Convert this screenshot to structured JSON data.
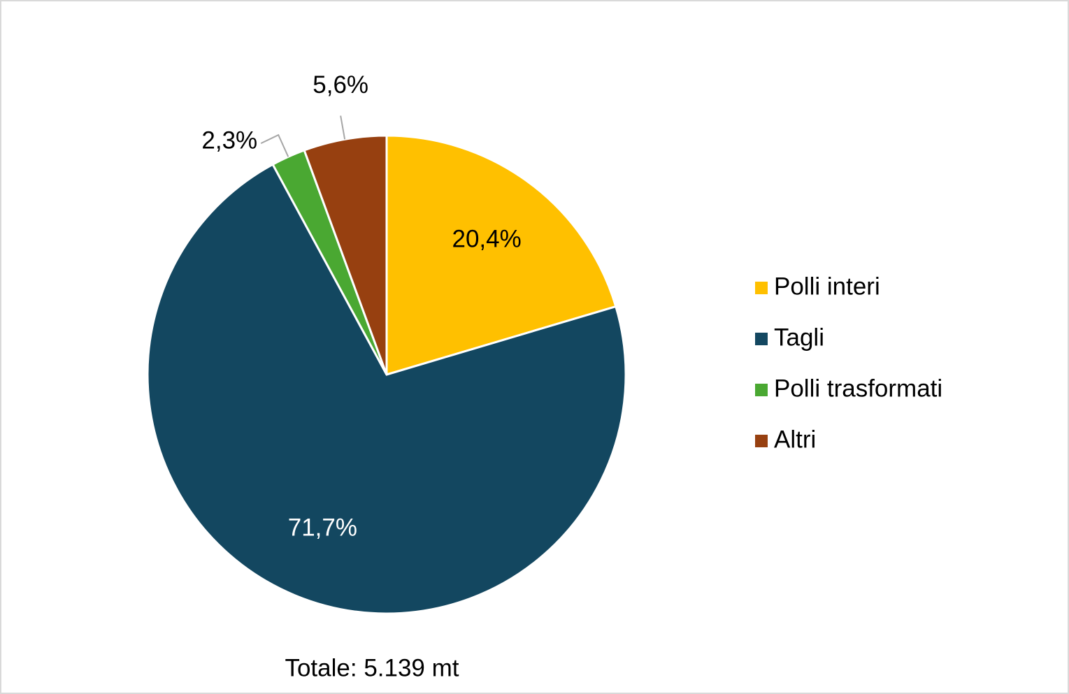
{
  "chart_data": {
    "type": "pie",
    "categories": [
      "Polli interi",
      "Tagli",
      "Polli trasformati",
      "Altri"
    ],
    "values": [
      20.4,
      71.7,
      2.3,
      5.6
    ],
    "value_labels": [
      "20,4%",
      "71,7%",
      "2,3%",
      "5,6%"
    ],
    "colors": [
      "#ffc000",
      "#134760",
      "#4aa832",
      "#974010"
    ],
    "annotation": "Totale: 5.139 mt",
    "legend": "right"
  }
}
